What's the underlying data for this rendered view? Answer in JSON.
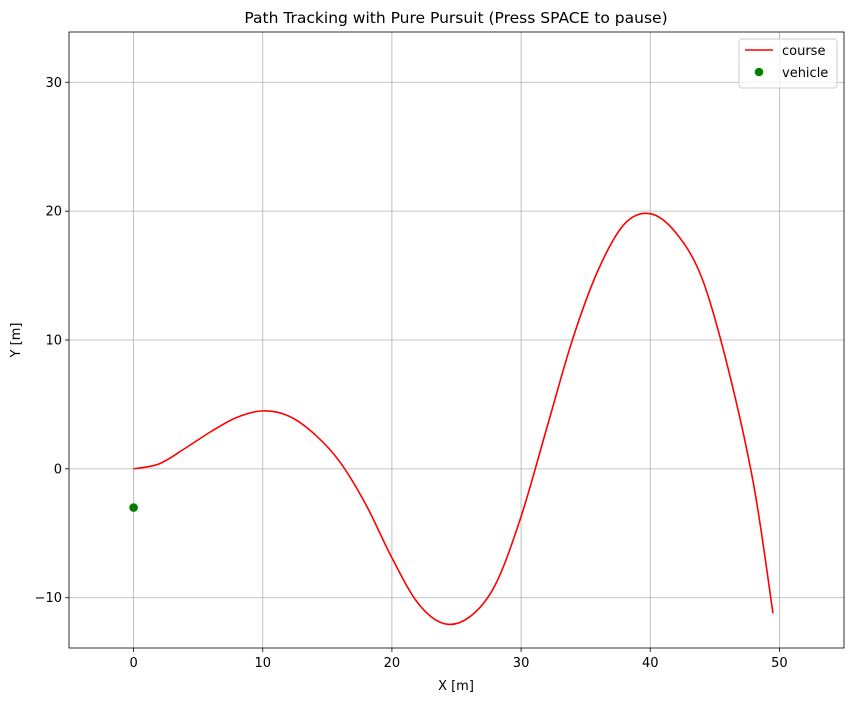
{
  "chart_data": {
    "type": "line",
    "title": "Path Tracking with Pure Pursuit (Press SPACE to pause)",
    "xlabel": "X [m]",
    "ylabel": "Y [m]",
    "xlim": [
      -5.0,
      55.0
    ],
    "ylim": [
      -13.9,
      33.9
    ],
    "xticks": [
      0,
      10,
      20,
      30,
      40,
      50
    ],
    "yticks": [
      -10,
      0,
      10,
      20,
      30
    ],
    "xtick_labels": [
      "0",
      "10",
      "20",
      "30",
      "40",
      "50"
    ],
    "ytick_labels": [
      "−10",
      "0",
      "10",
      "20",
      "30"
    ],
    "grid": true,
    "legend_position": "top-right",
    "series": [
      {
        "name": "course",
        "color": "#ff0000",
        "style": "line",
        "x": [
          0,
          2,
          4,
          6,
          8,
          10,
          12,
          14,
          16,
          18,
          20,
          22,
          24,
          26,
          28,
          30,
          32,
          34,
          36,
          38,
          40,
          42,
          44,
          46,
          48,
          49.5
        ],
        "y": [
          0,
          0.4,
          1.6,
          2.9,
          4.0,
          4.5,
          4.1,
          2.7,
          0.5,
          -2.8,
          -6.9,
          -10.4,
          -12.0,
          -11.5,
          -9.0,
          -3.7,
          3.2,
          10.1,
          15.5,
          19.0,
          19.8,
          18.3,
          14.8,
          7.9,
          -1.2,
          -11.2
        ]
      },
      {
        "name": "vehicle",
        "color": "#008000",
        "style": "marker",
        "x": [
          0
        ],
        "y": [
          -3
        ]
      }
    ]
  }
}
